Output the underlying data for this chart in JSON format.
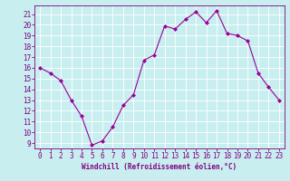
{
  "x": [
    0,
    1,
    2,
    3,
    4,
    5,
    6,
    7,
    8,
    9,
    10,
    11,
    12,
    13,
    14,
    15,
    16,
    17,
    18,
    19,
    20,
    21,
    22,
    23
  ],
  "y": [
    16,
    15.5,
    14.8,
    13,
    11.5,
    8.8,
    9.2,
    10.5,
    12.5,
    13.5,
    16.7,
    17.2,
    19.9,
    19.6,
    20.5,
    21.2,
    20.2,
    21.3,
    19.2,
    19.0,
    18.5,
    15.5,
    14.2,
    13
  ],
  "line_color": "#990099",
  "marker": "D",
  "marker_size": 2.0,
  "bg_color": "#c8eef0",
  "grid_color": "#ffffff",
  "xlabel": "Windchill (Refroidissement éolien,°C)",
  "xlabel_color": "#800080",
  "xlim": [
    -0.5,
    23.5
  ],
  "ylim": [
    8.5,
    21.8
  ],
  "xticks": [
    0,
    1,
    2,
    3,
    4,
    5,
    6,
    7,
    8,
    9,
    10,
    11,
    12,
    13,
    14,
    15,
    16,
    17,
    18,
    19,
    20,
    21,
    22,
    23
  ],
  "yticks": [
    9,
    10,
    11,
    12,
    13,
    14,
    15,
    16,
    17,
    18,
    19,
    20,
    21
  ],
  "tick_color": "#800080",
  "axis_color": "#800080",
  "tick_fontsize": 5.5,
  "xlabel_fontsize": 5.5,
  "linewidth": 0.8
}
